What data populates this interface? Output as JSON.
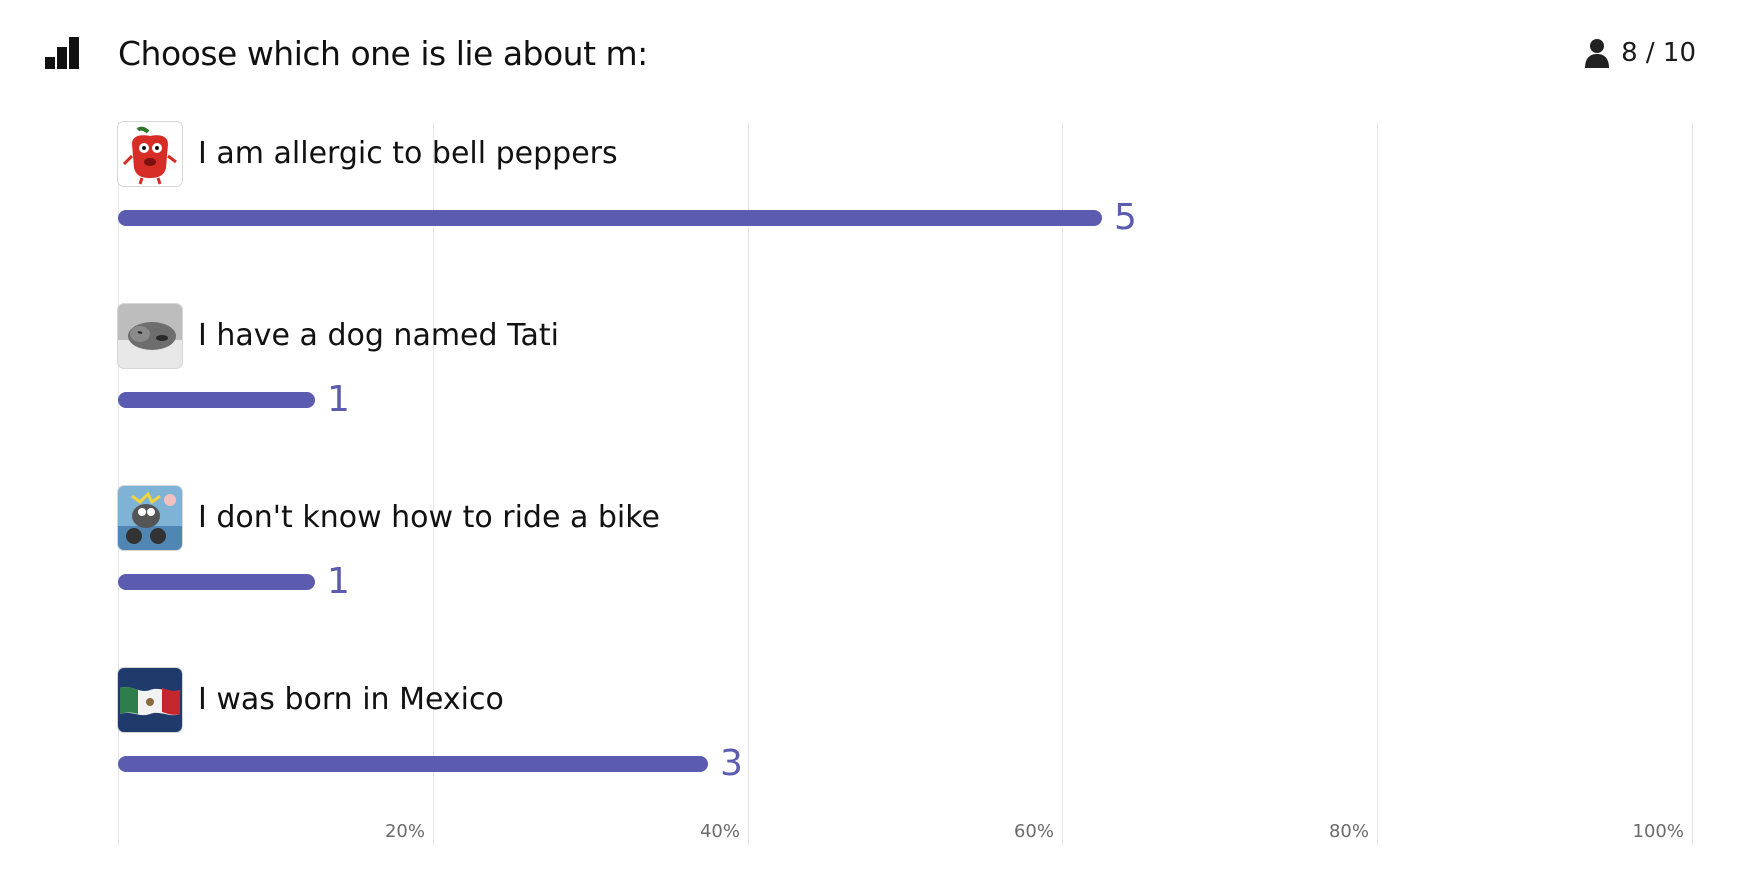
{
  "header": {
    "title": "Choose which one is lie about m:",
    "logo_icon": "bar-chart-logo-icon",
    "respondents": "8 / 10",
    "respondents_icon": "person-icon"
  },
  "colors": {
    "bar": "#5b5bb0",
    "gridline": "#e6e6e6"
  },
  "chart_data": {
    "type": "bar",
    "orientation": "horizontal",
    "categories": [
      "I am allergic to bell peppers",
      "I have a dog named Tati",
      "I don't know how to ride a bike",
      "I was born in Mexico"
    ],
    "values": [
      5,
      1,
      1,
      3
    ],
    "value_labels": [
      "5",
      "1",
      "1",
      "3"
    ],
    "total": 8,
    "thumbnails": [
      "pepper-monster-image",
      "dog-image",
      "bike-cartoon-image",
      "mexico-flag-image"
    ],
    "xlim": [
      0,
      100
    ],
    "x_unit": "%",
    "tick_labels": [
      "20%",
      "40%",
      "60%",
      "80%",
      "100%"
    ],
    "tick_values": [
      20,
      40,
      60,
      80,
      100
    ],
    "grid": true
  }
}
